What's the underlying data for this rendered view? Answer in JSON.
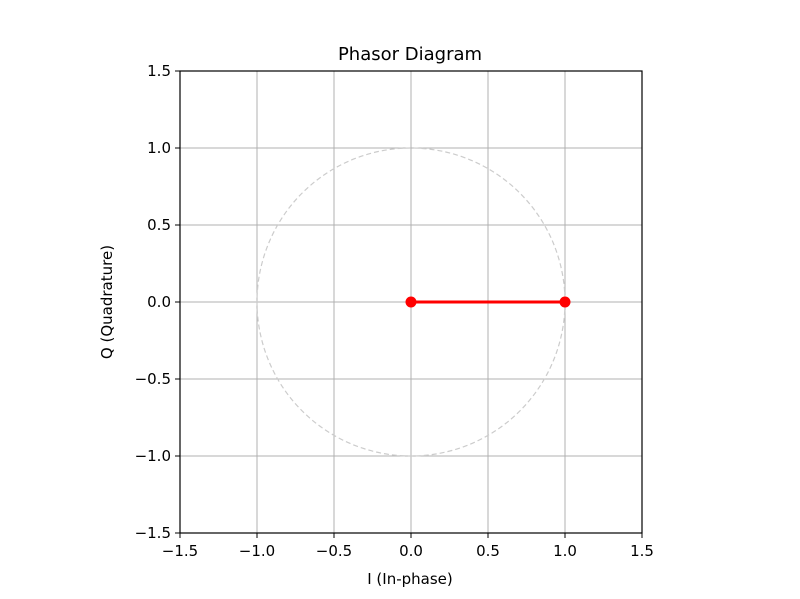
{
  "chart_data": {
    "type": "line",
    "title": "Phasor Diagram",
    "xlabel": "I (In-phase)",
    "ylabel": "Q (Quadrature)",
    "xlim": [
      -1.5,
      1.5
    ],
    "ylim": [
      -1.5,
      1.5
    ],
    "xticks": [
      -1.5,
      -1.0,
      -0.5,
      0.0,
      0.5,
      1.0,
      1.5
    ],
    "yticks": [
      -1.5,
      -1.0,
      -0.5,
      0.0,
      0.5,
      1.0,
      1.5
    ],
    "xtick_labels": [
      "−1.5",
      "−1.0",
      "−0.5",
      "0.0",
      "0.5",
      "1.0",
      "1.5"
    ],
    "ytick_labels": [
      "−1.5",
      "−1.0",
      "−0.5",
      "0.0",
      "0.5",
      "1.0",
      "1.5"
    ],
    "grid": true,
    "reference_circle": {
      "center": [
        0,
        0
      ],
      "radius": 1.0,
      "style": "dashed",
      "color": "#cccccc"
    },
    "series": [
      {
        "x": [
          0.0,
          1.0
        ],
        "y": [
          0.0,
          0.0
        ],
        "color": "#ff0000",
        "marker": "circle"
      }
    ]
  }
}
